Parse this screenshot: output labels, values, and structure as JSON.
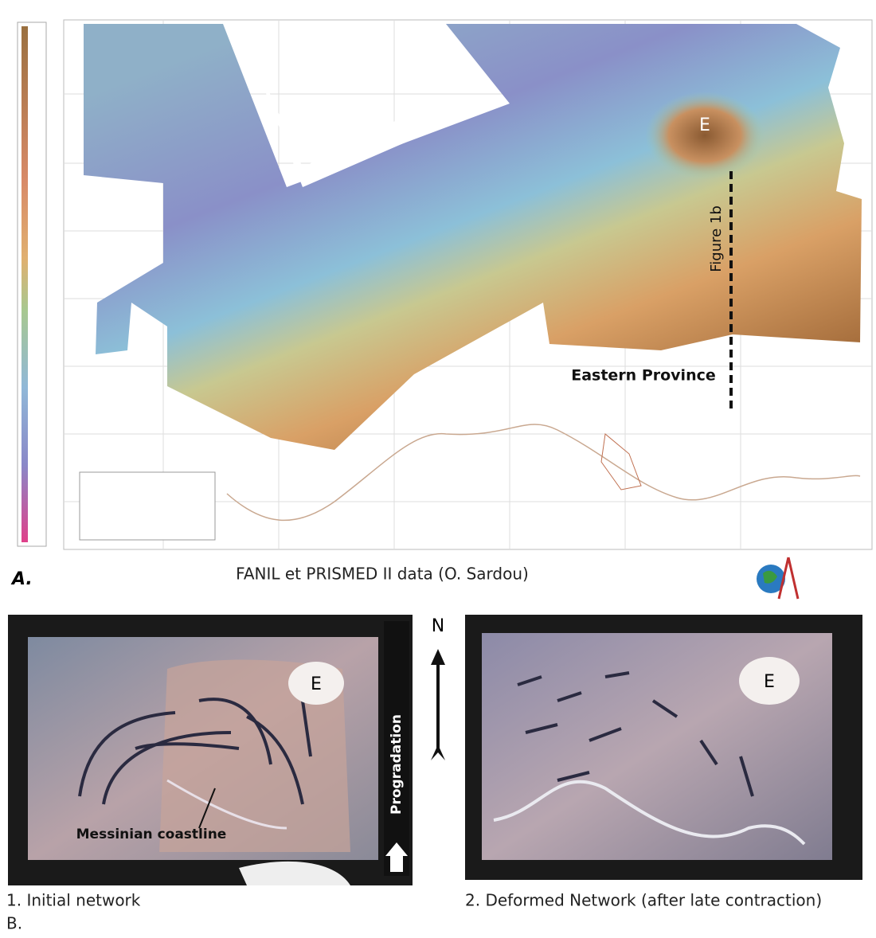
{
  "panel_a": {
    "label": "A.",
    "caption": "FANIL et PRISMED II data (O. Sardou)",
    "map_labels": {
      "summit": "E",
      "profile": "Figure 1b",
      "province": "Eastern Province"
    }
  },
  "panel_b": {
    "label": "B.",
    "north": "N",
    "photos": [
      {
        "caption": "1. Initial network",
        "summit": "E",
        "coastline": "Messinian coastline",
        "arrow": "Progradation"
      },
      {
        "caption": "2. Deformed Network (after late contraction)",
        "summit": "E"
      }
    ]
  }
}
